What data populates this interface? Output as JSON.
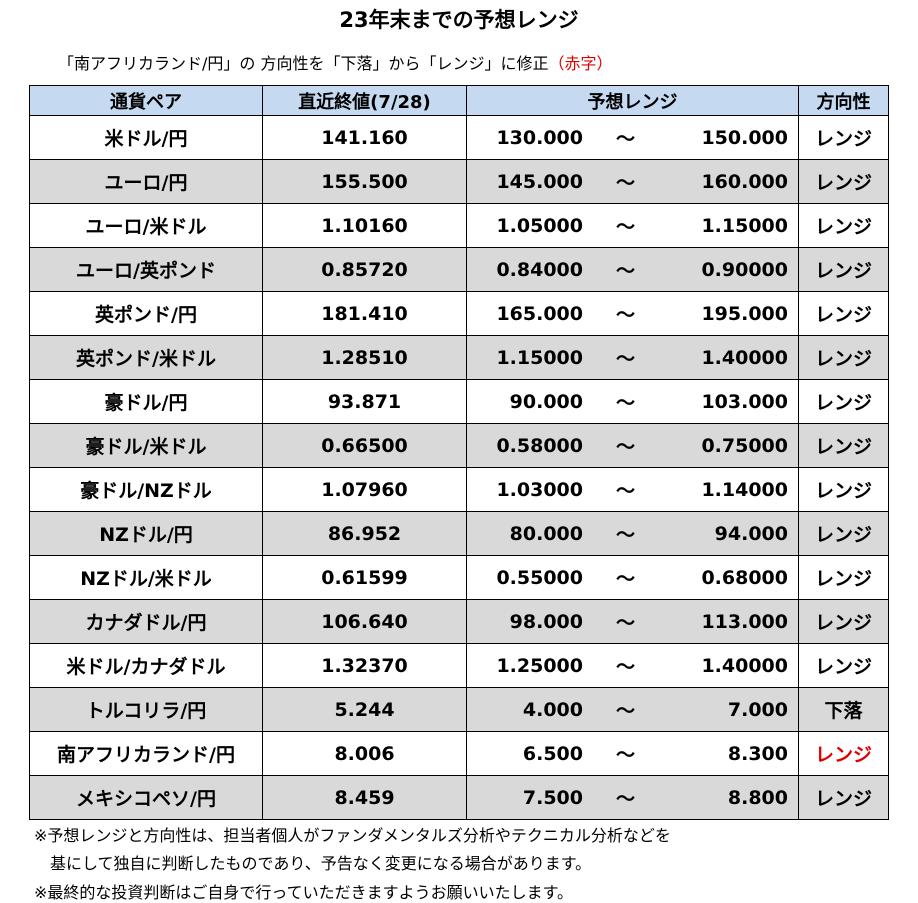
{
  "title": "23年末までの予想レンジ",
  "note": {
    "before": "「南アフリカランド/円」の 方向性を「下落」から「レンジ」に修正",
    "red": "（赤字）"
  },
  "headers": {
    "pair": "通貨ペア",
    "close": "直近終値(7/28)",
    "range": "予想レンジ",
    "direction": "方向性"
  },
  "tilde": "～",
  "rows": [
    {
      "pair": "米ドル/円",
      "close": "141.160",
      "low": "130.000",
      "high": "150.000",
      "direction": "レンジ"
    },
    {
      "pair": "ユーロ/円",
      "close": "155.500",
      "low": "145.000",
      "high": "160.000",
      "direction": "レンジ"
    },
    {
      "pair": "ユーロ/米ドル",
      "close": "1.10160",
      "low": "1.05000",
      "high": "1.15000",
      "direction": "レンジ"
    },
    {
      "pair": "ユーロ/英ポンド",
      "close": "0.85720",
      "low": "0.84000",
      "high": "0.90000",
      "direction": "レンジ"
    },
    {
      "pair": "英ポンド/円",
      "close": "181.410",
      "low": "165.000",
      "high": "195.000",
      "direction": "レンジ"
    },
    {
      "pair": "英ポンド/米ドル",
      "close": "1.28510",
      "low": "1.15000",
      "high": "1.40000",
      "direction": "レンジ"
    },
    {
      "pair": "豪ドル/円",
      "close": "93.871",
      "low": "90.000",
      "high": "103.000",
      "direction": "レンジ"
    },
    {
      "pair": "豪ドル/米ドル",
      "close": "0.66500",
      "low": "0.58000",
      "high": "0.75000",
      "direction": "レンジ"
    },
    {
      "pair": "豪ドル/NZドル",
      "close": "1.07960",
      "low": "1.03000",
      "high": "1.14000",
      "direction": "レンジ"
    },
    {
      "pair": "NZドル/円",
      "close": "86.952",
      "low": "80.000",
      "high": "94.000",
      "direction": "レンジ"
    },
    {
      "pair": "NZドル/米ドル",
      "close": "0.61599",
      "low": "0.55000",
      "high": "0.68000",
      "direction": "レンジ"
    },
    {
      "pair": "カナダドル/円",
      "close": "106.640",
      "low": "98.000",
      "high": "113.000",
      "direction": "レンジ"
    },
    {
      "pair": "米ドル/カナダドル",
      "close": "1.32370",
      "low": "1.25000",
      "high": "1.40000",
      "direction": "レンジ"
    },
    {
      "pair": "トルコリラ/円",
      "close": "5.244",
      "low": "4.000",
      "high": "7.000",
      "direction": "下落"
    },
    {
      "pair": "南アフリカランド/円",
      "close": "8.006",
      "low": "6.500",
      "high": "8.300",
      "direction": "レンジ",
      "highlight": true
    },
    {
      "pair": "メキシコペソ/円",
      "close": "8.459",
      "low": "7.500",
      "high": "8.800",
      "direction": "レンジ"
    }
  ],
  "highlight_color": "#e00000",
  "header_bg": "#c5d9f1",
  "stripe_bg": "#d9d9d9",
  "footnotes": [
    "※予想レンジと方向性は、担当者個人がファンダメンタルズ分析やテクニカル分析などを",
    "　基にして独自に判断したものであり、予告なく変更になる場合があります。",
    "※最終的な投資判断はご自身で行っていただきますようお願いいたします。"
  ]
}
